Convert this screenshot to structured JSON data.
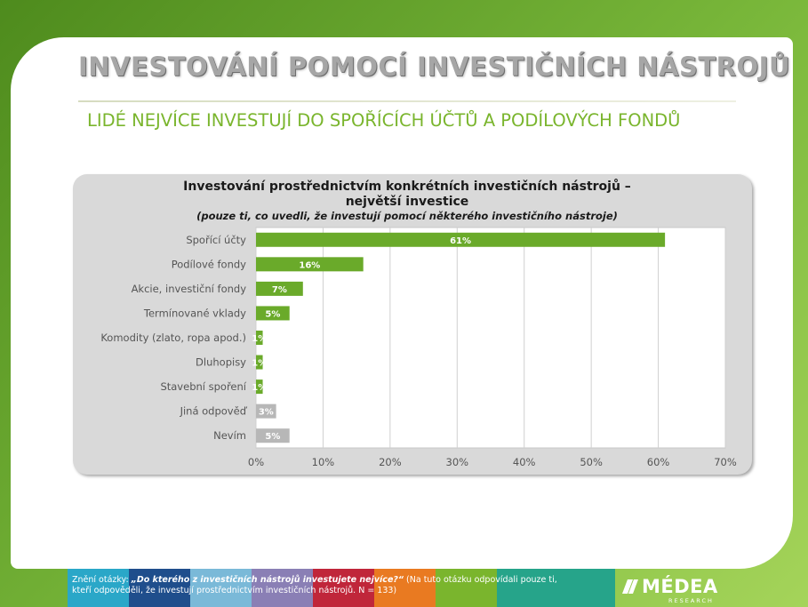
{
  "slide": {
    "title": "INVESTOVÁNÍ POMOCÍ INVESTIČNÍCH NÁSTROJŮ",
    "subtitle": "LIDÉ NEJVÍCE INVESTUJÍ DO SPOŘÍCÍCH ÚČTŮ A PODÍLOVÝCH FONDŮ"
  },
  "chart_data": {
    "type": "bar",
    "orientation": "horizontal",
    "title_line1": "Investování prostřednictvím konkrétních investičních nástrojů –",
    "title_line2": "největší investice",
    "subtitle": "(pouze ti, co uvedli, že investují pomocí některého investičního nástroje)",
    "categories": [
      "Spořící účty",
      "Podílové fondy",
      "Akcie, investiční fondy",
      "Termínované vklady",
      "Komodity (zlato, ropa apod.)",
      "Dluhopisy",
      "Stavební spoření",
      "Jiná odpověď",
      "Nevím"
    ],
    "values": [
      61,
      16,
      7,
      5,
      1,
      1,
      1,
      3,
      5
    ],
    "value_labels": [
      "61%",
      "16%",
      "7%",
      "5%",
      "1%",
      "1%",
      "1%",
      "3%",
      "5%"
    ],
    "bar_colors": [
      "#6aaa2a",
      "#6aaa2a",
      "#6aaa2a",
      "#6aaa2a",
      "#6aaa2a",
      "#6aaa2a",
      "#6aaa2a",
      "#b7b7b7",
      "#b7b7b7"
    ],
    "xlim": [
      0,
      70
    ],
    "xticks": [
      0,
      10,
      20,
      30,
      40,
      50,
      60,
      70
    ],
    "xtick_labels": [
      "0%",
      "10%",
      "20%",
      "30%",
      "40%",
      "50%",
      "60%",
      "70%"
    ],
    "grid": true
  },
  "footer": {
    "question_prefix": "Znění otázky: ",
    "question": "„Do kterého z investičních nástrojů investujete nejvíce?“",
    "note": " (Na tuto otázku odpovídali pouze ti, kteří odpověděli, že investují prostřednictvím investičních nástrojů. N = 133)",
    "stripe_colors": [
      "#2aa7c8",
      "#1f4e8c",
      "#7ab9d8",
      "#8a7fb5",
      "#c0263a",
      "#e97a21",
      "#7ab52d",
      "#26a48a"
    ]
  },
  "logo": {
    "name": "MÉDEA",
    "sub": "RESEARCH"
  }
}
